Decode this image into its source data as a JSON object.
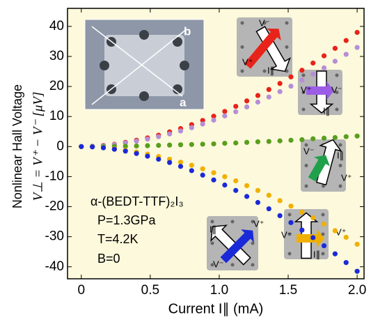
{
  "chart_data": {
    "type": "scatter",
    "y_label": "Nonlinear Hall Voltage",
    "y_label_2": "V⊥ = V⁺ − V⁻  [μV]",
    "x_label": "Current I∥ (mA)",
    "x": [
      0,
      0.08,
      0.16,
      0.24,
      0.32,
      0.4,
      0.48,
      0.56,
      0.64,
      0.72,
      0.8,
      0.88,
      0.96,
      1.04,
      1.12,
      1.2,
      1.28,
      1.36,
      1.44,
      1.52,
      1.6,
      1.68,
      1.76,
      1.84,
      1.92,
      2.0
    ],
    "series": [
      {
        "color": "#e8231a",
        "values": [
          0,
          0.1,
          0.4,
          0.8,
          1.4,
          2.1,
          2.9,
          3.8,
          4.9,
          6.0,
          7.3,
          8.7,
          10.1,
          11.7,
          13.4,
          15.2,
          17.0,
          19.0,
          21.0,
          23.2,
          25.4,
          27.8,
          30.2,
          32.7,
          35.3,
          38.0
        ]
      },
      {
        "color": "#b48fd6",
        "values": [
          0,
          0.1,
          0.3,
          0.7,
          1.2,
          1.8,
          2.5,
          3.3,
          4.2,
          5.2,
          6.3,
          7.5,
          8.8,
          10.2,
          11.6,
          13.2,
          14.8,
          16.5,
          18.3,
          20.1,
          22.1,
          24.1,
          26.2,
          28.4,
          30.7,
          33.0
        ]
      },
      {
        "color": "#5a9e1e",
        "values": [
          0,
          0,
          0,
          0.1,
          0.1,
          0.2,
          0.3,
          0.4,
          0.5,
          0.6,
          0.7,
          0.8,
          0.9,
          1.1,
          1.2,
          1.4,
          1.6,
          1.7,
          1.9,
          2.1,
          2.3,
          2.6,
          2.8,
          3.0,
          3.3,
          3.5
        ]
      },
      {
        "color": "#f0b000",
        "values": [
          0,
          -0.1,
          -0.3,
          -0.7,
          -1.2,
          -1.8,
          -2.5,
          -3.3,
          -4.2,
          -5.2,
          -6.2,
          -7.4,
          -8.7,
          -10.0,
          -11.4,
          -13.0,
          -14.6,
          -16.2,
          -18.0,
          -19.8,
          -21.8,
          -23.7,
          -25.8,
          -28.0,
          -30.2,
          -32.5
        ]
      },
      {
        "color": "#1a2ad8",
        "values": [
          0,
          -0.1,
          -0.4,
          -0.9,
          -1.5,
          -2.3,
          -3.2,
          -4.2,
          -5.3,
          -6.6,
          -8.0,
          -9.5,
          -11.1,
          -12.8,
          -14.6,
          -16.6,
          -18.6,
          -20.7,
          -23.0,
          -25.3,
          -27.8,
          -30.3,
          -33.0,
          -35.7,
          -38.6,
          -41.5
        ]
      }
    ],
    "xlim": [
      -0.1,
      2.05
    ],
    "ylim": [
      -44,
      46
    ],
    "xticks": [
      0,
      0.5,
      {
        "value": 1,
        "label": "1.0"
      },
      1.5,
      {
        "value": 2,
        "label": "2.0"
      }
    ],
    "yticks": [
      -40,
      -30,
      -20,
      -10,
      0,
      10,
      20,
      30,
      40
    ],
    "annotations": [
      "α-(BEDT-TTF)₂I₃",
      "P=1.3GPa",
      "T=4.2K",
      "B=0"
    ],
    "photo_labels": [
      "b",
      "a"
    ],
    "insets": [
      {
        "color": "#e8231a",
        "labels": [
          "V⁻",
          "V⁺",
          "I∥"
        ]
      },
      {
        "color": "#9b5de5",
        "labels": [
          "V⁺",
          "V⁻",
          "I∥"
        ]
      },
      {
        "color": "#1fa04a",
        "labels": [
          "V⁻",
          "I∥",
          "V⁺"
        ]
      },
      {
        "color": "#f0b000",
        "labels": [
          "V⁻",
          "V⁺",
          "I∥"
        ]
      },
      {
        "color": "#1a2ad8",
        "labels": [
          "I∥",
          "V⁺",
          "V⁻"
        ]
      }
    ]
  }
}
